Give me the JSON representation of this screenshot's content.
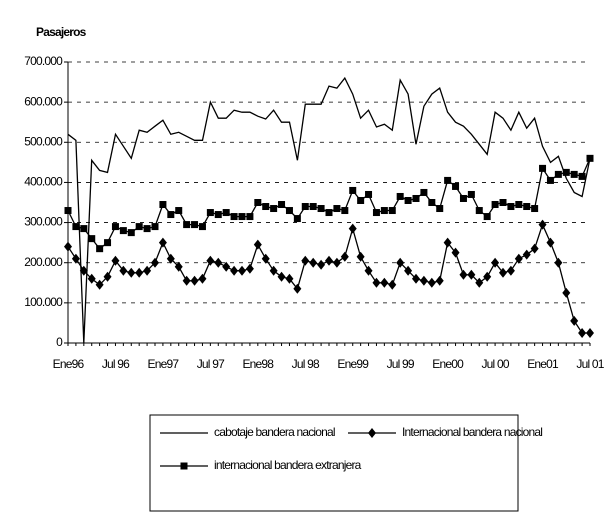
{
  "chart_data": {
    "type": "line",
    "title": "Pasajeros",
    "categories": [
      "Ene96",
      null,
      null,
      null,
      null,
      null,
      "Jul 96",
      null,
      null,
      null,
      null,
      null,
      "Ene97",
      null,
      null,
      null,
      null,
      null,
      "Jul 97",
      null,
      null,
      null,
      null,
      null,
      "Ene98",
      null,
      null,
      null,
      null,
      null,
      "Jul 98",
      null,
      null,
      null,
      null,
      null,
      "Ene99",
      null,
      null,
      null,
      null,
      null,
      "Jul 99",
      null,
      null,
      null,
      null,
      null,
      "Ene00",
      null,
      null,
      null,
      null,
      null,
      "Jul 00",
      null,
      null,
      null,
      null,
      null,
      "Ene01",
      null,
      null,
      null,
      null,
      null,
      "Jul 01"
    ],
    "series": [
      {
        "name": "cabotaje bandera nacional",
        "color": "#000000",
        "marker": "none",
        "values": [
          520000,
          505000,
          0,
          455000,
          430000,
          425000,
          520000,
          490000,
          460000,
          530000,
          525000,
          540000,
          555000,
          520000,
          525000,
          515000,
          505000,
          505000,
          600000,
          560000,
          560000,
          580000,
          575000,
          575000,
          565000,
          558000,
          580000,
          550000,
          550000,
          455000,
          595000,
          595000,
          595000,
          640000,
          635000,
          660000,
          620000,
          560000,
          580000,
          538000,
          545000,
          530000,
          655000,
          620000,
          495000,
          590000,
          620000,
          635000,
          575000,
          550000,
          540000,
          520000,
          495000,
          470000,
          575000,
          560000,
          530000,
          575000,
          535000,
          560000,
          490000,
          450000,
          465000,
          410000,
          375000,
          365000,
          460000
        ]
      },
      {
        "name": "Internacional bandera nacional",
        "color": "#000000",
        "marker": "diamond",
        "values": [
          240000,
          210000,
          180000,
          160000,
          145000,
          165000,
          205000,
          180000,
          175000,
          175000,
          180000,
          200000,
          250000,
          210000,
          190000,
          155000,
          155000,
          160000,
          205000,
          200000,
          190000,
          180000,
          180000,
          185000,
          245000,
          210000,
          180000,
          165000,
          160000,
          135000,
          205000,
          200000,
          195000,
          205000,
          200000,
          215000,
          285000,
          215000,
          180000,
          150000,
          150000,
          145000,
          200000,
          180000,
          160000,
          155000,
          150000,
          155000,
          250000,
          225000,
          170000,
          170000,
          150000,
          165000,
          200000,
          175000,
          180000,
          210000,
          220000,
          235000,
          295000,
          250000,
          200000,
          125000,
          55000,
          25000,
          25000
        ]
      },
      {
        "name": "internacional bandera extranjera",
        "color": "#000000",
        "marker": "square",
        "values": [
          330000,
          290000,
          285000,
          260000,
          235000,
          250000,
          290000,
          280000,
          275000,
          290000,
          285000,
          290000,
          345000,
          320000,
          330000,
          295000,
          295000,
          290000,
          325000,
          320000,
          325000,
          315000,
          315000,
          315000,
          350000,
          340000,
          335000,
          345000,
          330000,
          310000,
          340000,
          340000,
          335000,
          325000,
          335000,
          330000,
          380000,
          355000,
          370000,
          325000,
          330000,
          330000,
          365000,
          355000,
          360000,
          375000,
          350000,
          335000,
          405000,
          390000,
          360000,
          370000,
          330000,
          315000,
          345000,
          350000,
          340000,
          345000,
          340000,
          335000,
          435000,
          405000,
          420000,
          425000,
          420000,
          415000,
          460000
        ]
      }
    ],
    "ylim": [
      0,
      700000
    ],
    "yticks": [
      0,
      {
        "value": 100000,
        "label": "100.000"
      },
      {
        "value": 200000,
        "label": "200.000"
      },
      {
        "value": 300000,
        "label": "300.000"
      },
      {
        "value": 400000,
        "label": "400.000"
      },
      {
        "value": 500000,
        "label": "500.000"
      },
      {
        "value": 600000,
        "label": "600.000"
      },
      {
        "value": 700000,
        "label": "700.000"
      }
    ],
    "grid": true
  }
}
